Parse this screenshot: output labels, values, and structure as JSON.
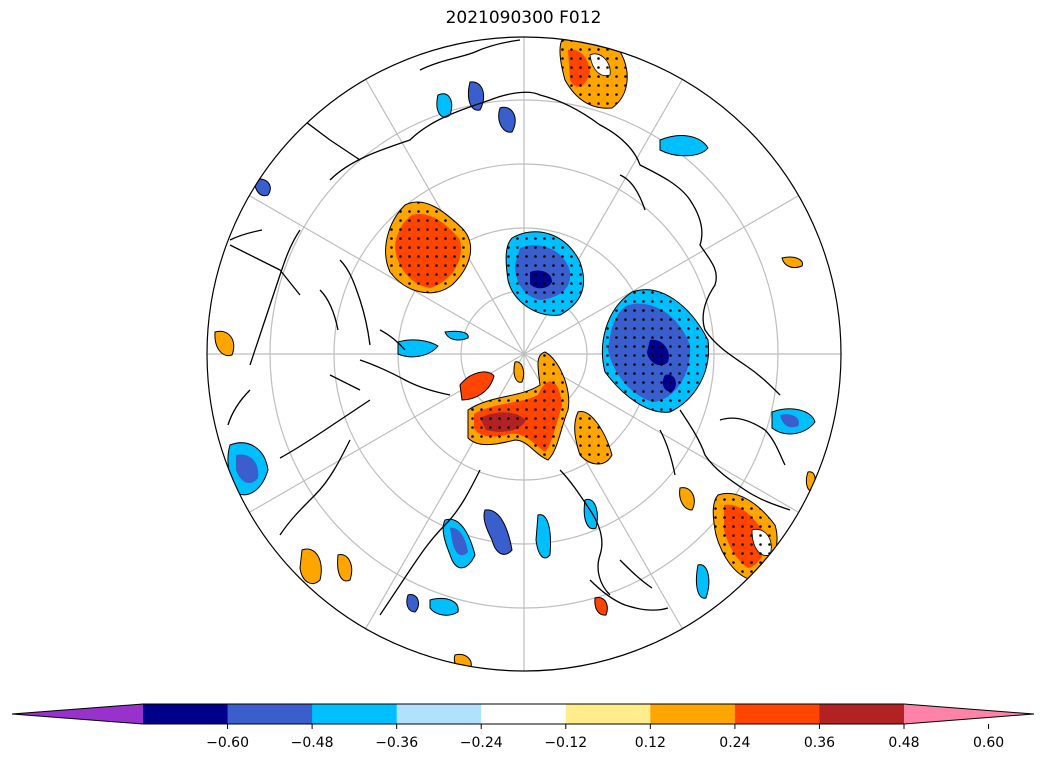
{
  "title": "2021090300 F012",
  "colorbar": {
    "ticks": [
      "−0.60",
      "−0.48",
      "−0.36",
      "−0.24",
      "−0.12",
      "0.12",
      "0.24",
      "0.36",
      "0.48",
      "0.60"
    ],
    "colors": [
      "#9932CC",
      "#00008B",
      "#3A5FCD",
      "#00BFFF",
      "#B0E2FF",
      "#FFFFFF",
      "#FFEC8B",
      "#FFA500",
      "#FF4500",
      "#B22222",
      "#FF83A8"
    ],
    "extend": "both"
  },
  "map": {
    "projection": "north-polar-stereographic",
    "stippling": "significant regions",
    "graticule_color": "#BEBEBE"
  }
}
